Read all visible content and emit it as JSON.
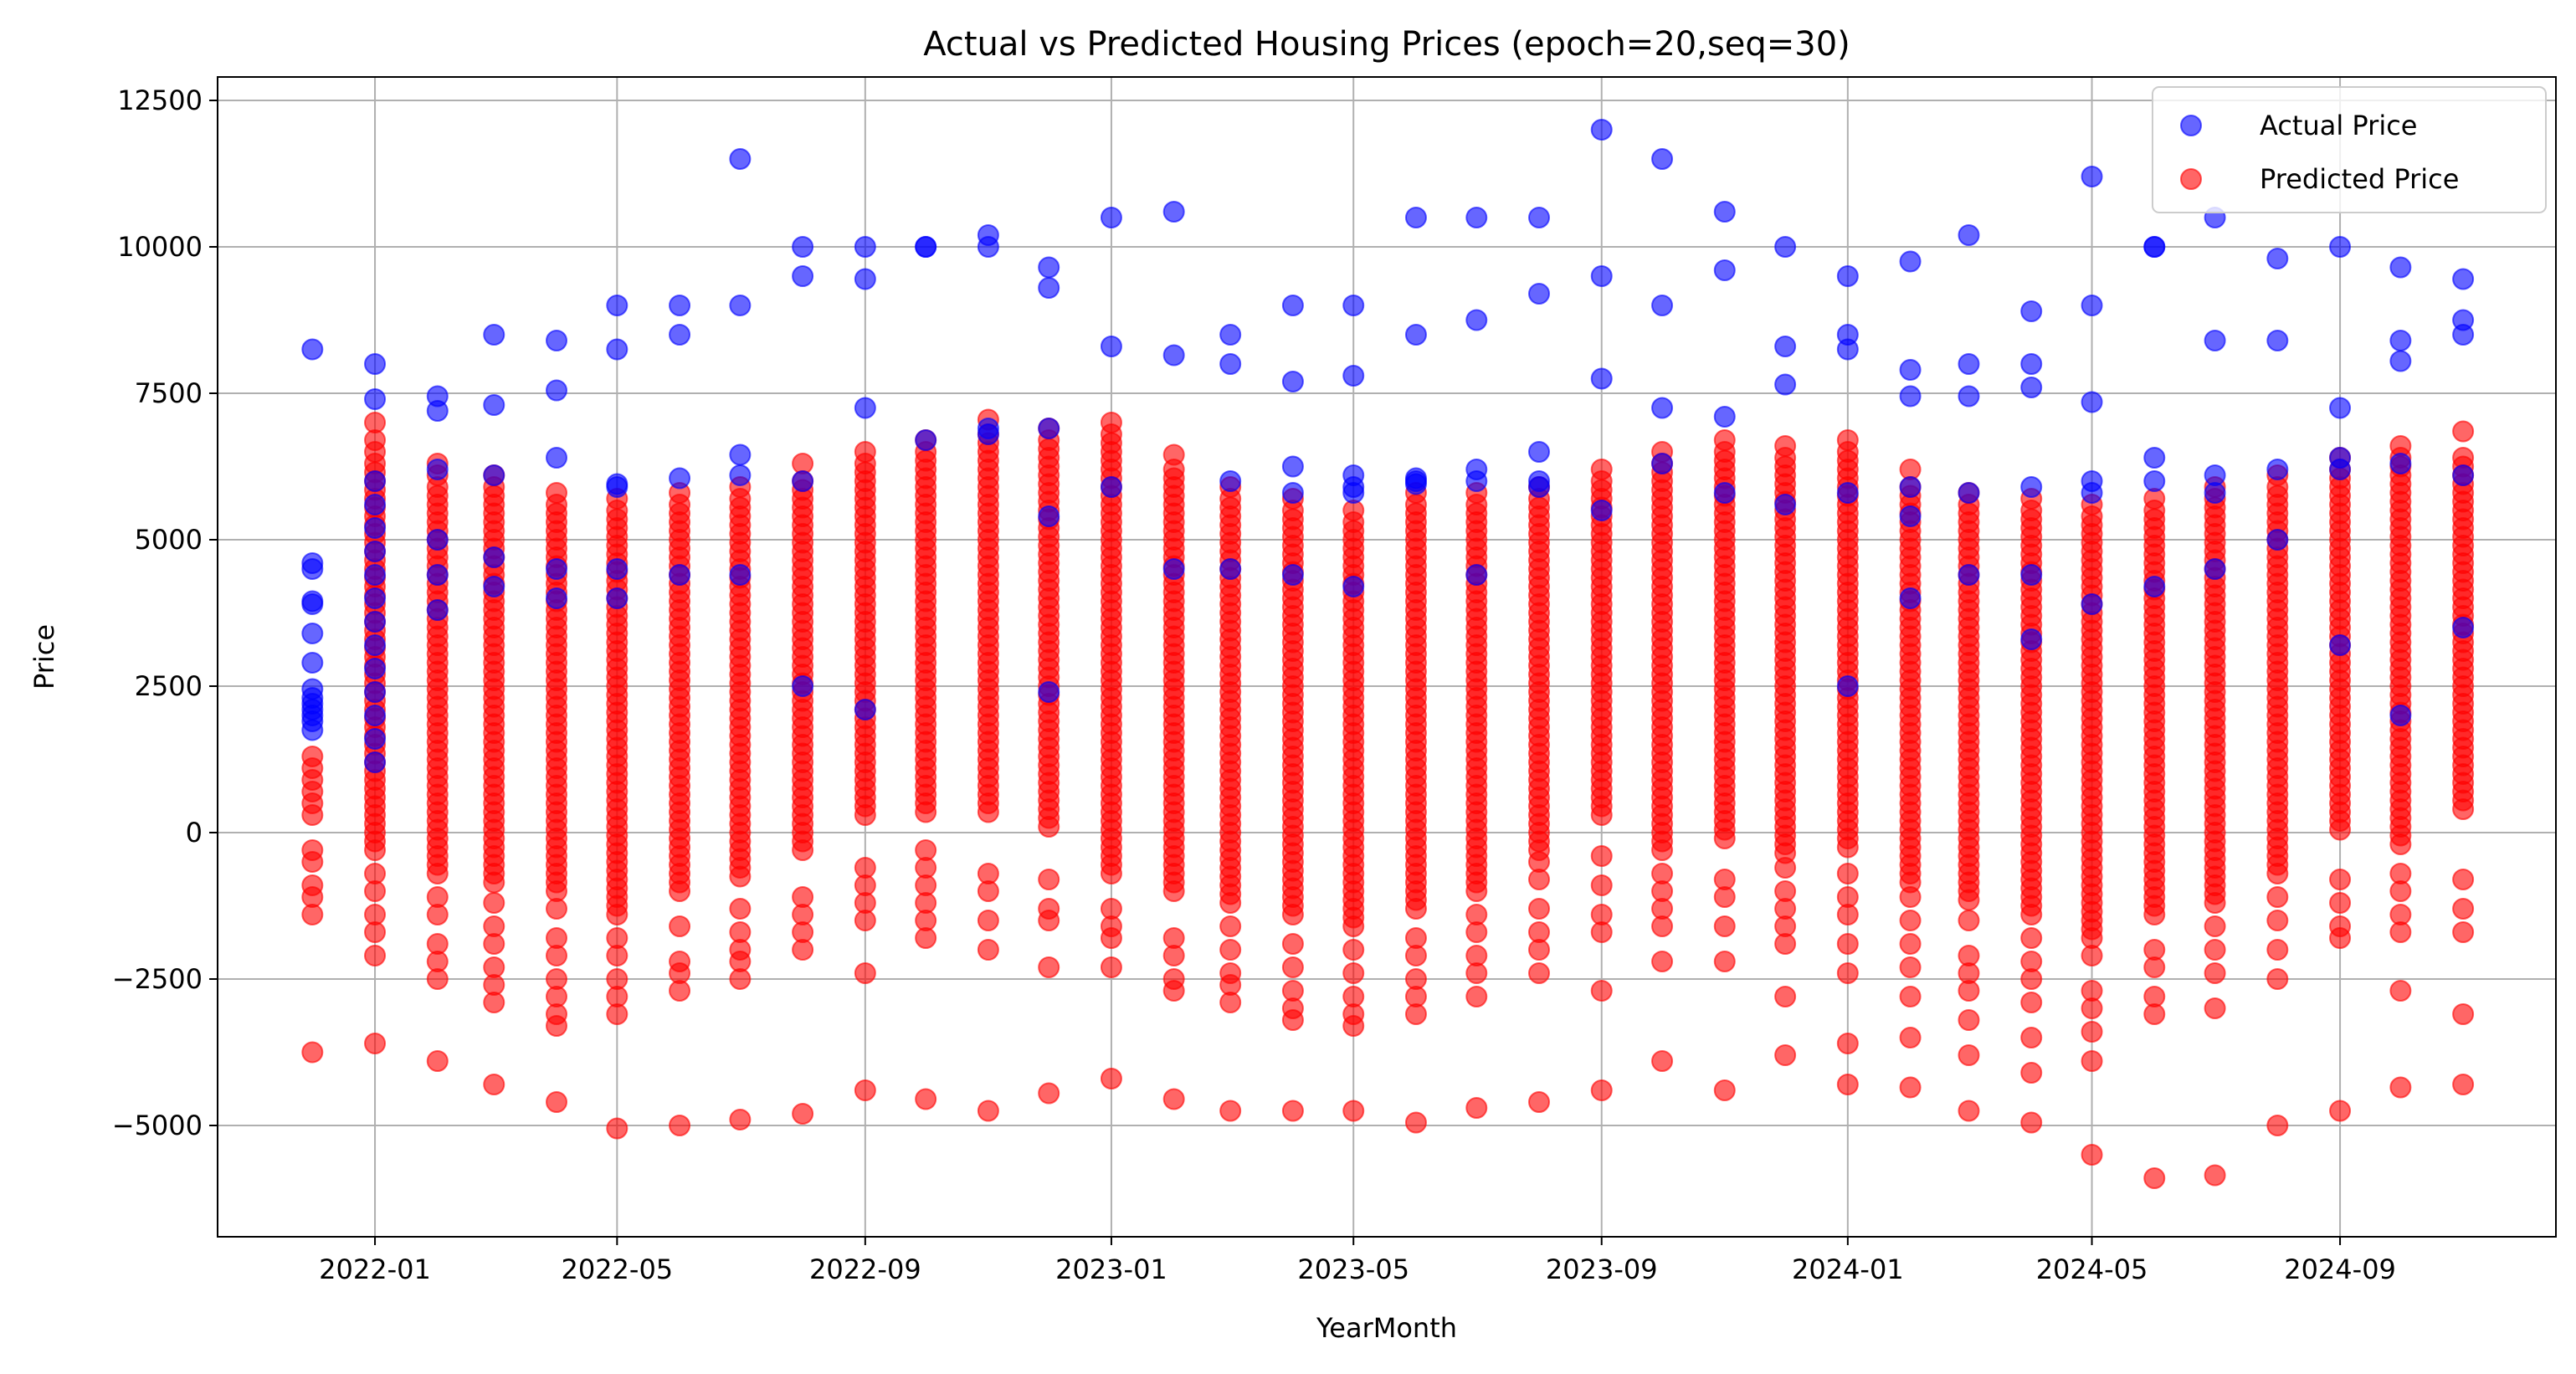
{
  "chart_data": {
    "type": "scatter",
    "title": "Actual vs Predicted Housing Prices (epoch=20,seq=30)",
    "xlabel": "YearMonth",
    "ylabel": "Price",
    "x_axis": {
      "type": "date",
      "range": [
        "2021-10-15",
        "2024-12-17"
      ],
      "ticks": [
        "2022-01",
        "2022-05",
        "2022-09",
        "2023-01",
        "2023-05",
        "2023-09",
        "2024-01",
        "2024-05",
        "2024-09"
      ]
    },
    "y_axis": {
      "range": [
        -6900,
        12900
      ],
      "ticks": [
        -5000,
        -2500,
        0,
        2500,
        5000,
        7500,
        10000,
        12500
      ]
    },
    "grid": true,
    "legend": {
      "placement": "top-right"
    },
    "series": [
      {
        "name": "Actual Price",
        "color": "#0000ff",
        "points": [
          {
            "x": "2021-12",
            "y": [
              8250,
              4600,
              4500,
              3950,
              3900,
              3400,
              2900,
              2450,
              2300,
              2200,
              2100,
              2000,
              1900,
              1750
            ]
          },
          {
            "x": "2022-01",
            "y": [
              8000,
              7400,
              6000,
              5600,
              5200,
              4800,
              4400,
              4000,
              3600,
              3200,
              2800,
              2400,
              2000,
              1600,
              1200
            ]
          },
          {
            "x": "2022-02",
            "y": [
              7450,
              7200,
              6200,
              5000,
              4400,
              3800
            ]
          },
          {
            "x": "2022-03",
            "y": [
              8500,
              7300,
              6100,
              4700,
              4200
            ]
          },
          {
            "x": "2022-04",
            "y": [
              8400,
              7550,
              6400,
              4500,
              4000
            ]
          },
          {
            "x": "2022-05",
            "y": [
              9000,
              8250,
              5950,
              5900,
              4500,
              4000
            ]
          },
          {
            "x": "2022-06",
            "y": [
              9000,
              8500,
              6050,
              4400
            ]
          },
          {
            "x": "2022-07",
            "y": [
              11500,
              9000,
              6450,
              6100,
              4400
            ]
          },
          {
            "x": "2022-08",
            "y": [
              10000,
              9500,
              6000,
              2500
            ]
          },
          {
            "x": "2022-09",
            "y": [
              10000,
              9450,
              7250,
              2100
            ]
          },
          {
            "x": "2022-10",
            "y": [
              10000,
              10000,
              6700
            ]
          },
          {
            "x": "2022-11",
            "y": [
              10200,
              10000,
              6900,
              6800
            ]
          },
          {
            "x": "2022-12",
            "y": [
              9650,
              9300,
              6900,
              5400,
              2400
            ]
          },
          {
            "x": "2023-01",
            "y": [
              10500,
              8300,
              5900
            ]
          },
          {
            "x": "2023-02",
            "y": [
              10600,
              8150,
              4500
            ]
          },
          {
            "x": "2023-03",
            "y": [
              8500,
              8000,
              6000,
              4500
            ]
          },
          {
            "x": "2023-04",
            "y": [
              9000,
              7700,
              6250,
              5800,
              4400
            ]
          },
          {
            "x": "2023-05",
            "y": [
              9000,
              7800,
              6100,
              5900,
              5800,
              4200
            ]
          },
          {
            "x": "2023-06",
            "y": [
              10500,
              8500,
              6050,
              6000,
              5950
            ]
          },
          {
            "x": "2023-07",
            "y": [
              10500,
              8750,
              6200,
              6000,
              4400
            ]
          },
          {
            "x": "2023-08",
            "y": [
              10500,
              9200,
              6500,
              6000,
              5900
            ]
          },
          {
            "x": "2023-09",
            "y": [
              12000,
              9500,
              7750,
              5500
            ]
          },
          {
            "x": "2023-10",
            "y": [
              11500,
              9000,
              7250,
              6300
            ]
          },
          {
            "x": "2023-11",
            "y": [
              10600,
              9600,
              7100,
              5800
            ]
          },
          {
            "x": "2023-12",
            "y": [
              10000,
              8300,
              7650,
              5600
            ]
          },
          {
            "x": "2024-01",
            "y": [
              9500,
              8500,
              8250,
              5800,
              2500
            ]
          },
          {
            "x": "2024-02",
            "y": [
              9750,
              7900,
              7450,
              5900,
              5400,
              4000
            ]
          },
          {
            "x": "2024-03",
            "y": [
              10200,
              8000,
              7450,
              5800,
              4400
            ]
          },
          {
            "x": "2024-04",
            "y": [
              8900,
              8000,
              7600,
              5900,
              4400,
              3300
            ]
          },
          {
            "x": "2024-05",
            "y": [
              11200,
              9000,
              7350,
              6000,
              5800,
              3900
            ]
          },
          {
            "x": "2024-06",
            "y": [
              10000,
              10000,
              6400,
              6000,
              4200
            ]
          },
          {
            "x": "2024-07",
            "y": [
              10500,
              8400,
              6100,
              5800,
              4500
            ]
          },
          {
            "x": "2024-08",
            "y": [
              9800,
              8400,
              6200,
              5000
            ]
          },
          {
            "x": "2024-09",
            "y": [
              10000,
              7250,
              6400,
              6200,
              3200
            ]
          },
          {
            "x": "2024-10",
            "y": [
              9650,
              8400,
              8050,
              6300,
              2000
            ]
          },
          {
            "x": "2024-11",
            "y": [
              9450,
              8750,
              8500,
              6100,
              3500
            ]
          }
        ]
      },
      {
        "name": "Predicted Price",
        "color": "#ff0000",
        "points": [
          {
            "x": "2021-12",
            "y": [
              1300,
              1100,
              900,
              700,
              500,
              300,
              -300,
              -500,
              -900,
              -1100,
              -1400,
              -3750
            ]
          },
          {
            "x": "2022-01",
            "y": [
              7000,
              6700,
              6500,
              "6300 to -300 dense",
              -700,
              -1000,
              -1400,
              -1700,
              -2100,
              -3600
            ]
          },
          {
            "x": "2022-02",
            "y": [
              6300,
              6100,
              "5900 to -700 dense",
              -1100,
              -1400,
              -1900,
              -2200,
              -2500,
              -3900
            ]
          },
          {
            "x": "2022-03",
            "y": [
              6100,
              "5900 to -900 dense",
              -1200,
              -1600,
              -1900,
              -2300,
              -2600,
              -2900,
              -4300
            ]
          },
          {
            "x": "2022-04",
            "y": [
              5800,
              "5600 to -1100 dense",
              -1300,
              -1800,
              -2100,
              -2500,
              -2800,
              -3100,
              -3300,
              -4600
            ]
          },
          {
            "x": "2022-05",
            "y": [
              5700,
              "5500 to -1400 dense",
              -1800,
              -2100,
              -2500,
              -2800,
              -3100,
              -5050
            ]
          },
          {
            "x": "2022-06",
            "y": [
              5800,
              "5600 to -1100 dense",
              -1600,
              -2200,
              -2400,
              -2700,
              -5000
            ]
          },
          {
            "x": "2022-07",
            "y": [
              5900,
              "5700 to -800 dense",
              -1300,
              -1700,
              -2000,
              -2200,
              -2500,
              -4900
            ]
          },
          {
            "x": "2022-08",
            "y": [
              6300,
              "6000 to -300 dense",
              -1100,
              -1400,
              -1700,
              -2000,
              -4800
            ]
          },
          {
            "x": "2022-09",
            "y": [
              6500,
              "6300 to 300 dense",
              -600,
              -900,
              -1200,
              -1500,
              -2400,
              -4400
            ]
          },
          {
            "x": "2022-10",
            "y": [
              6700,
              "6500 to 300 dense",
              -300,
              -600,
              -900,
              -1200,
              -1500,
              -1800,
              -4550
            ]
          },
          {
            "x": "2022-11",
            "y": [
              7050,
              "6800 to 300 dense",
              -700,
              -1000,
              -1500,
              -2000,
              -4750
            ]
          },
          {
            "x": "2022-12",
            "y": [
              6900,
              "6700 to 0 dense",
              -800,
              -1300,
              -1500,
              -2300,
              -4450
            ]
          },
          {
            "x": "2023-01",
            "y": [
              7000,
              "6800 to -700 dense",
              -1300,
              -1600,
              -1800,
              -2300,
              -4200
            ]
          },
          {
            "x": "2023-02",
            "y": [
              6450,
              "6200 to -1000 dense",
              -1800,
              -2100,
              -2500,
              -2700,
              -4550
            ]
          },
          {
            "x": "2023-03",
            "y": [
              5900,
              "5700 to -1300 dense",
              -1600,
              -2000,
              -2400,
              -2600,
              -2900,
              -4750
            ]
          },
          {
            "x": "2023-04",
            "y": [
              5700,
              "5500 to -1500 dense",
              -1900,
              -2300,
              -2700,
              -3000,
              -3200,
              -4750
            ]
          },
          {
            "x": "2023-05",
            "y": [
              5500,
              "5300 to -1700 dense",
              -2000,
              -2400,
              -2800,
              -3100,
              -3300,
              -4750
            ]
          },
          {
            "x": "2023-06",
            "y": [
              5800,
              "5600 to -1400 dense",
              -1800,
              -2100,
              -2500,
              -2800,
              -3100,
              -4950
            ]
          },
          {
            "x": "2023-07",
            "y": [
              5800,
              "5600 to -1000 dense",
              -1400,
              -1700,
              -2100,
              -2400,
              -2800,
              -4700
            ]
          },
          {
            "x": "2023-08",
            "y": [
              5900,
              "5700 to -300 dense",
              -500,
              -800,
              -1300,
              -1700,
              -2000,
              -2400,
              -4600
            ]
          },
          {
            "x": "2023-09",
            "y": [
              6200,
              "6000 to 300 dense",
              -400,
              -900,
              -1400,
              -1700,
              -2700,
              -4400
            ]
          },
          {
            "x": "2023-10",
            "y": [
              6500,
              "6300 to -300 dense",
              -700,
              -1000,
              -1300,
              -1600,
              -2200,
              -3900
            ]
          },
          {
            "x": "2023-11",
            "y": [
              6700,
              "6500 to -100 dense",
              -800,
              -1100,
              -1600,
              -2200,
              -4400
            ]
          },
          {
            "x": "2023-12",
            "y": [
              6600,
              "6400 to -400 dense",
              -600,
              -1000,
              -1300,
              -1600,
              -1900,
              -2800,
              -3800
            ]
          },
          {
            "x": "2024-01",
            "y": [
              6700,
              "6500 to -300 dense",
              -700,
              -1100,
              -1400,
              -1900,
              -2400,
              -3600,
              -4300
            ]
          },
          {
            "x": "2024-02",
            "y": [
              6200,
              "5900 to -900 dense",
              -1100,
              -1500,
              -1900,
              -2300,
              -2800,
              -3500,
              -4350
            ]
          },
          {
            "x": "2024-03",
            "y": [
              5800,
              "5600 to -1200 dense",
              -1500,
              -2100,
              -2400,
              -2700,
              -3200,
              -3800,
              -4750
            ]
          },
          {
            "x": "2024-04",
            "y": [
              5700,
              "5500 to -1400 dense",
              -1800,
              -2200,
              -2500,
              -2900,
              -3500,
              -4100,
              -4950
            ]
          },
          {
            "x": "2024-05",
            "y": [
              5600,
              "5400 to -1800 dense",
              -2100,
              -2700,
              -3000,
              -3400,
              -3900,
              -5500
            ]
          },
          {
            "x": "2024-06",
            "y": [
              5700,
              "5500 to -1500 dense",
              -2000,
              -2300,
              -2800,
              -3100,
              -5900
            ]
          },
          {
            "x": "2024-07",
            "y": [
              5900,
              "5700 to -1200 dense",
              -1600,
              -2000,
              -2400,
              -3000,
              -5850
            ]
          },
          {
            "x": "2024-08",
            "y": [
              6100,
              "5900 to -700 dense",
              -1100,
              -1500,
              -2000,
              -2500,
              -5000
            ]
          },
          {
            "x": "2024-09",
            "y": [
              6400,
              "6200 to 0 dense",
              -800,
              -1200,
              -1600,
              -1800,
              -4750
            ]
          },
          {
            "x": "2024-10",
            "y": [
              6600,
              "6400 to -300 dense",
              -700,
              -1000,
              -1400,
              -1700,
              -2700,
              -4350
            ]
          },
          {
            "x": "2024-11",
            "y": [
              6850,
              "6400 to 300 dense",
              -800,
              -1300,
              -1700,
              -3100,
              -4300
            ]
          }
        ]
      }
    ]
  }
}
